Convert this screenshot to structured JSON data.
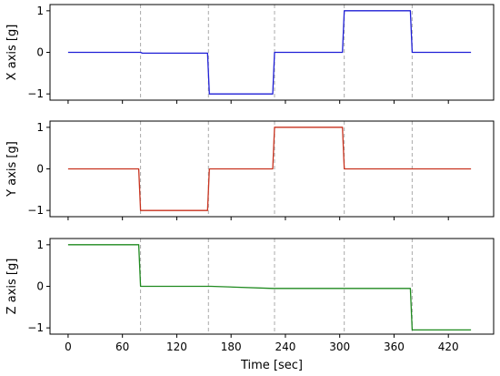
{
  "chart_data": {
    "type": "line",
    "shared_xlabel": "Time [sec]",
    "xlim": [
      -20,
      470
    ],
    "xticks": [
      0,
      60,
      120,
      180,
      240,
      300,
      360,
      420
    ],
    "event_lines": [
      80,
      155,
      228,
      305,
      380
    ],
    "event_line_color": "#aaaaaa",
    "subplots": [
      {
        "ylabel": "X axis [g]",
        "ylim": [
          -1.15,
          1.15
        ],
        "yticks": [
          1,
          0,
          -1
        ],
        "ytick_labels": [
          "1",
          "0",
          "−1"
        ],
        "color": "#1f1fd6",
        "x": [
          0,
          78,
          80,
          82,
          154,
          156,
          158,
          226,
          228,
          230,
          303,
          305,
          307,
          378,
          380,
          382,
          445
        ],
        "y": [
          0.0,
          0.0,
          0.0,
          -0.02,
          -0.02,
          -1.0,
          -1.0,
          -1.0,
          0.0,
          0.0,
          0.0,
          1.0,
          1.0,
          1.0,
          0.0,
          0.0,
          0.0
        ]
      },
      {
        "ylabel": "Y axis [g]",
        "ylim": [
          -1.15,
          1.15
        ],
        "yticks": [
          1,
          0,
          -1
        ],
        "ytick_labels": [
          "1",
          "0",
          "−1"
        ],
        "color": "#c8321e",
        "x": [
          0,
          78,
          80,
          82,
          154,
          156,
          158,
          226,
          228,
          230,
          303,
          305,
          307,
          378,
          380,
          382,
          445
        ],
        "y": [
          0.0,
          0.0,
          -1.0,
          -1.0,
          -1.0,
          0.0,
          0.0,
          0.0,
          1.0,
          1.0,
          1.0,
          0.0,
          0.0,
          0.0,
          0.0,
          0.0,
          0.0
        ]
      },
      {
        "ylabel": "Z axis [g]",
        "ylim": [
          -1.15,
          1.15
        ],
        "yticks": [
          1,
          0,
          -1
        ],
        "ytick_labels": [
          "1",
          "0",
          "−1"
        ],
        "color": "#1f8a1f",
        "x": [
          0,
          78,
          80,
          82,
          154,
          156,
          158,
          226,
          228,
          230,
          303,
          305,
          307,
          378,
          380,
          382,
          445
        ],
        "y": [
          1.0,
          1.0,
          0.0,
          0.0,
          0.0,
          0.0,
          0.0,
          -0.05,
          -0.05,
          -0.05,
          -0.05,
          -0.05,
          -0.05,
          -0.05,
          -1.05,
          -1.05,
          -1.05
        ]
      }
    ]
  }
}
